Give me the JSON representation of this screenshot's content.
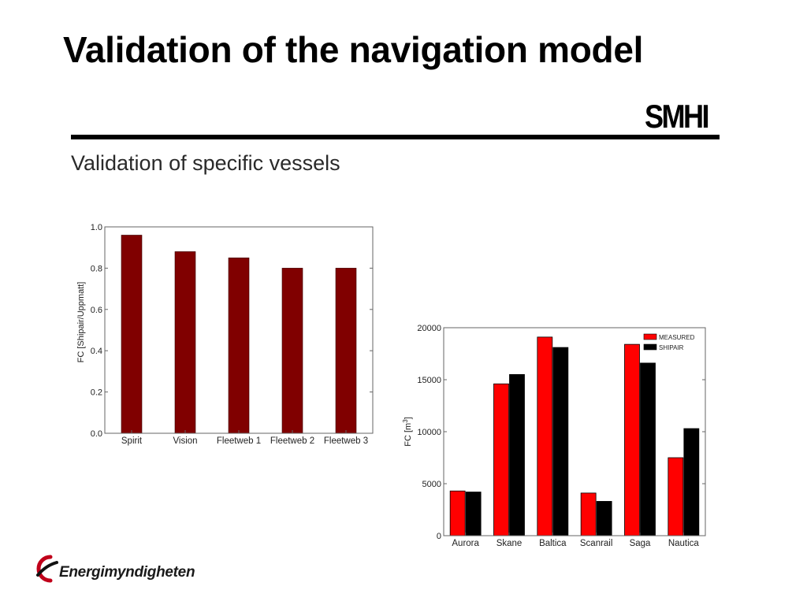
{
  "slide": {
    "title": "Validation of the navigation model",
    "brand": "SMHI",
    "subtitle": "Validation of specific vessels",
    "footer_logo": "Energimyndigheten"
  },
  "colors": {
    "bar_dark_red": "#800000",
    "measured_red": "#ff0000",
    "shipair_black": "#000000"
  },
  "chart_data": [
    {
      "type": "bar",
      "title": "",
      "xlabel": "",
      "ylabel": "FC [Shipair/Uppmatt]",
      "ylim": [
        0.0,
        1.0
      ],
      "yticks": [
        0.0,
        0.2,
        0.4,
        0.6,
        0.8,
        1.0
      ],
      "ytick_labels": [
        "0.0",
        "0.2",
        "0.4",
        "0.6",
        "0.8",
        "1.0"
      ],
      "categories": [
        "Spirit",
        "Vision",
        "Fleetweb 1",
        "Fleetweb 2",
        "Fleetweb 3"
      ],
      "values": [
        0.96,
        0.88,
        0.85,
        0.8,
        0.8
      ],
      "grid": false
    },
    {
      "type": "bar",
      "title": "",
      "xlabel": "",
      "ylabel": "FC [m",
      "ylabel_sup": "3",
      "ylabel_end": "]",
      "ylim": [
        0,
        20000
      ],
      "yticks": [
        0,
        5000,
        10000,
        15000,
        20000
      ],
      "ytick_labels": [
        "0",
        "5000",
        "10000",
        "15000",
        "20000"
      ],
      "categories": [
        "Aurora",
        "Skane",
        "Baltica",
        "Scanrail",
        "Saga",
        "Nautica"
      ],
      "series": [
        {
          "name": "MEASURED",
          "values": [
            4300,
            14600,
            19100,
            4100,
            18400,
            7500
          ]
        },
        {
          "name": "SHIPAIR",
          "values": [
            4200,
            15500,
            18100,
            3300,
            16600,
            10300
          ]
        }
      ],
      "legend_position": "top-right",
      "grid": false
    }
  ]
}
